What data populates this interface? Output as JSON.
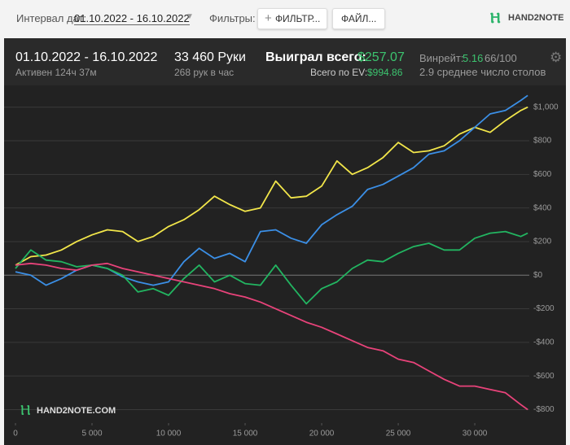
{
  "toolbar": {
    "date_label": "Интервал дат:",
    "date_range": "01.10.2022 - 16.10.2022",
    "filters_label": "Фильтры:",
    "filter_button": "ФИЛЬТР...",
    "file_button": "ФАЙЛ...",
    "logo": "HAND2NOTE"
  },
  "stats": {
    "period": "01.10.2022 - 16.10.2022",
    "active": "Активен 124ч 37м",
    "hands": "33 460 Руки",
    "hands_per_hour": "268 рук в час",
    "won_label": "Выиграл всего:",
    "won_value": "$257.07",
    "ev_label": "Всего по EV:",
    "ev_value": "$994.86",
    "winrate_label": "Винрейт:",
    "winrate_value": "5.16",
    "winrate_unit": "66/100",
    "tables": "2.9 среднее число столов"
  },
  "chart_data": {
    "type": "line",
    "watermark": "HAND2NOTE.COM",
    "x": [
      0,
      1000,
      2000,
      3000,
      4000,
      5000,
      6000,
      7000,
      8000,
      9000,
      10000,
      11000,
      12000,
      13000,
      14000,
      15000,
      16000,
      17000,
      18000,
      19000,
      20000,
      21000,
      22000,
      23000,
      24000,
      25000,
      26000,
      27000,
      28000,
      29000,
      30000,
      31000,
      32000,
      33000,
      33460
    ],
    "series": [
      {
        "color": "#f2e64a",
        "values": [
          60,
          110,
          120,
          150,
          200,
          240,
          270,
          260,
          200,
          230,
          290,
          330,
          390,
          470,
          420,
          380,
          400,
          560,
          460,
          470,
          530,
          680,
          600,
          640,
          700,
          790,
          730,
          740,
          770,
          840,
          880,
          850,
          920,
          980,
          1000
        ]
      },
      {
        "color": "#3b8fe6",
        "values": [
          20,
          0,
          -60,
          -20,
          30,
          60,
          40,
          -10,
          -40,
          -60,
          -40,
          80,
          160,
          100,
          130,
          80,
          260,
          270,
          220,
          190,
          300,
          360,
          410,
          510,
          540,
          590,
          640,
          720,
          740,
          800,
          880,
          960,
          980,
          1040,
          1070
        ]
      },
      {
        "color": "#22b561",
        "values": [
          40,
          150,
          90,
          80,
          50,
          60,
          40,
          0,
          -100,
          -80,
          -120,
          -20,
          60,
          -40,
          0,
          -50,
          -60,
          60,
          -60,
          -170,
          -80,
          -40,
          40,
          90,
          80,
          130,
          170,
          190,
          150,
          150,
          220,
          250,
          260,
          230,
          250
        ]
      },
      {
        "color": "#e8437a",
        "values": [
          60,
          70,
          60,
          40,
          30,
          60,
          70,
          40,
          20,
          0,
          -20,
          -40,
          -60,
          -80,
          -110,
          -130,
          -160,
          -200,
          -240,
          -280,
          -310,
          -350,
          -390,
          -430,
          -450,
          -500,
          -520,
          -570,
          -620,
          -660,
          -660,
          -680,
          -700,
          -770,
          -800
        ]
      }
    ],
    "xlim": [
      0,
      33560
    ],
    "ylim": [
      -880,
      1110
    ],
    "xticks": [
      0,
      {
        "value": 5000,
        "label": "5 000"
      },
      {
        "value": 10000,
        "label": "10 000"
      },
      {
        "value": 15000,
        "label": "15 000"
      },
      {
        "value": 20000,
        "label": "20 000"
      },
      {
        "value": 25000,
        "label": "25 000"
      },
      {
        "value": 30000,
        "label": "30 000"
      }
    ],
    "yticks": [
      {
        "value": -800,
        "label": "-$800"
      },
      {
        "value": -600,
        "label": "-$600"
      },
      {
        "value": -400,
        "label": "-$400"
      },
      {
        "value": -200,
        "label": "-$200"
      },
      {
        "value": 0,
        "label": "$0"
      },
      {
        "value": 200,
        "label": "$200"
      },
      {
        "value": 400,
        "label": "$400"
      },
      {
        "value": 600,
        "label": "$600"
      },
      {
        "value": 800,
        "label": "$800"
      },
      {
        "value": 1000,
        "label": "$1,000"
      }
    ],
    "grid": true
  }
}
